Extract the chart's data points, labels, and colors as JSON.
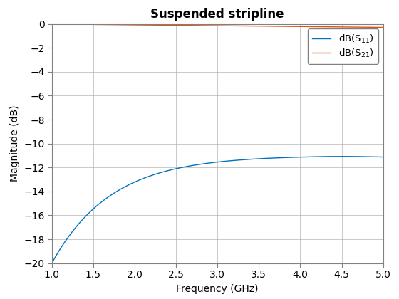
{
  "title": "Suspended stripline",
  "xlabel": "Frequency (GHz)",
  "ylabel": "Magnitude (dB)",
  "xlim": [
    1,
    5
  ],
  "ylim": [
    -20,
    0
  ],
  "xticks": [
    1,
    1.5,
    2,
    2.5,
    3,
    3.5,
    4,
    4.5,
    5
  ],
  "yticks": [
    0,
    -2,
    -4,
    -6,
    -8,
    -10,
    -12,
    -14,
    -16,
    -18,
    -20
  ],
  "s11_color": "#0072BD",
  "s21_color": "#D95319",
  "s11_label": "dB(S$_{11}$)",
  "s21_label": "dB(S$_{21}$)",
  "background_color": "#ffffff",
  "grid_color": "#b0b0b0",
  "title_fontsize": 12,
  "label_fontsize": 10,
  "tick_fontsize": 10,
  "legend_fontsize": 9.5
}
